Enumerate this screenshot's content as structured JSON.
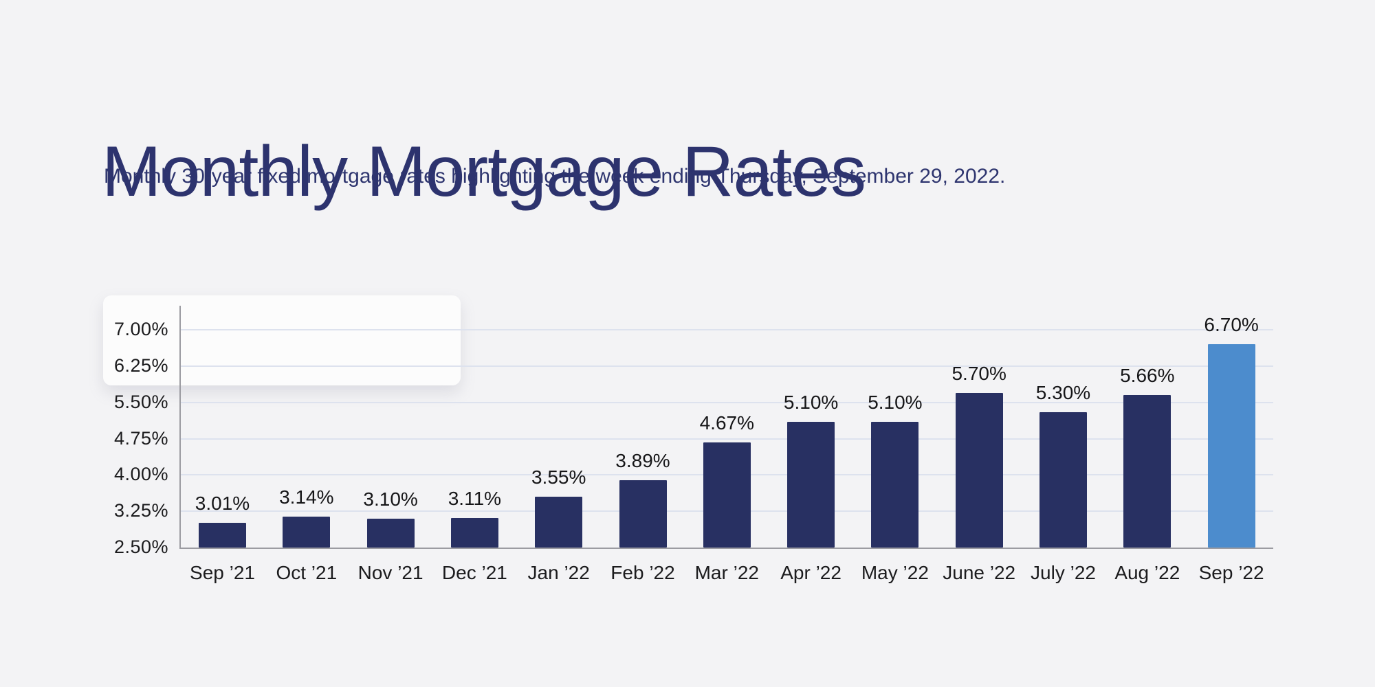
{
  "page": {
    "title": "Monthly Mortgage Rates",
    "subtitle": "Monthly 30-year fixed mortgage rates highlighting the week ending Thursday, September 29, 2022."
  },
  "colors": {
    "background": "#f3f3f5",
    "title_navy": "#2d336e",
    "bar_navy": "#283062",
    "bar_highlight_blue": "#4c8ccd",
    "gridline": "#dde2ee",
    "axis_gray": "#9b9ba1",
    "label_dark": "#1b1b1d"
  },
  "chart_data": {
    "type": "bar",
    "title": "Monthly Mortgage Rates",
    "subtitle": "Monthly 30-year fixed mortgage rates highlighting the week ending Thursday, September 29, 2022.",
    "categories": [
      "Sep ’21",
      "Oct ’21",
      "Nov ’21",
      "Dec ’21",
      "Jan ’22",
      "Feb ’22",
      "Mar ’22",
      "Apr ’22",
      "May ’22",
      "June ’22",
      "July ’22",
      "Aug ’22",
      "Sep ’22"
    ],
    "values": [
      3.01,
      3.14,
      3.1,
      3.11,
      3.55,
      3.89,
      4.67,
      5.1,
      5.1,
      5.7,
      5.3,
      5.66,
      6.7
    ],
    "value_labels": [
      "3.01%",
      "3.14%",
      "3.10%",
      "3.11%",
      "3.55%",
      "3.89%",
      "4.67%",
      "5.10%",
      "5.10%",
      "5.70%",
      "5.30%",
      "5.66%",
      "6.70%"
    ],
    "highlighted_index": 12,
    "highlight_meaning": "week ending Thursday, September 29, 2022",
    "xlabel": "",
    "ylabel": "",
    "y_ticks": [
      7.0,
      6.25,
      5.5,
      4.75,
      4.0,
      3.25,
      2.5
    ],
    "y_tick_labels": [
      "7.00%",
      "6.25%",
      "5.50%",
      "4.75%",
      "4.00%",
      "3.25%",
      "2.50%"
    ],
    "ylim": [
      2.5,
      7.45
    ],
    "grid": "horizontal",
    "legend": "none"
  }
}
